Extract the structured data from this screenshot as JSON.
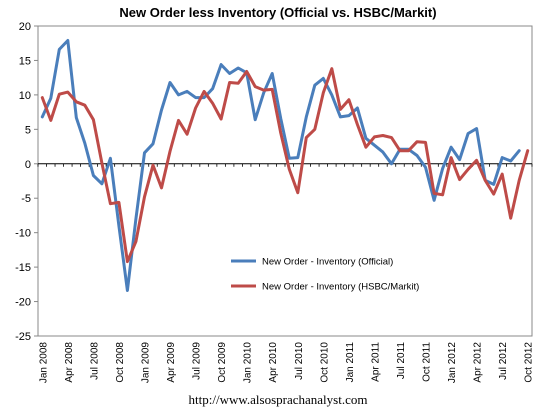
{
  "chart_data": {
    "type": "line",
    "title": "New Order less Inventory (Official vs. HSBC/Markit)",
    "xlabel": "",
    "ylabel": "",
    "ylim": [
      -25,
      20
    ],
    "yticks": [
      -25,
      -20,
      -15,
      -10,
      -5,
      0,
      5,
      10,
      15,
      20
    ],
    "x": [
      "Jan 2008",
      "Feb 2008",
      "Mar 2008",
      "Apr 2008",
      "May 2008",
      "Jun 2008",
      "Jul 2008",
      "Aug 2008",
      "Sep 2008",
      "Oct 2008",
      "Nov 2008",
      "Dec 2008",
      "Jan 2009",
      "Feb 2009",
      "Mar 2009",
      "Apr 2009",
      "May 2009",
      "Jun 2009",
      "Jul 2009",
      "Aug 2009",
      "Sep 2009",
      "Oct 2009",
      "Nov 2009",
      "Dec 2009",
      "Jan 2010",
      "Feb 2010",
      "Mar 2010",
      "Apr 2010",
      "May 2010",
      "Jun 2010",
      "Jul 2010",
      "Aug 2010",
      "Sep 2010",
      "Oct 2010",
      "Nov 2010",
      "Dec 2010",
      "Jan 2011",
      "Feb 2011",
      "Mar 2011",
      "Apr 2011",
      "May 2011",
      "Jun 2011",
      "Jul 2011",
      "Aug 2011",
      "Sep 2011",
      "Oct 2011",
      "Nov 2011",
      "Dec 2011",
      "Jan 2012",
      "Feb 2012",
      "Mar 2012",
      "Apr 2012",
      "May 2012",
      "Jun 2012",
      "Jul 2012",
      "Aug 2012",
      "Sep 2012",
      "Oct 2012"
    ],
    "xtick_labels": [
      "Jan 2008",
      "Apr 2008",
      "Jul 2008",
      "Oct 2008",
      "Jan 2009",
      "Apr 2009",
      "Jul 2009",
      "Oct 2009",
      "Jan 2010",
      "Apr 2010",
      "Jul 2010",
      "Oct 2010",
      "Jan 2011",
      "Apr 2011",
      "Jul 2011",
      "Oct 2011",
      "Jan 2012",
      "Apr 2012",
      "Jul 2012",
      "Oct 2012"
    ],
    "series": [
      {
        "name": "New Order - Inventory (Official)",
        "color": "#4A7EBB",
        "values": [
          6.8,
          9.5,
          16.6,
          17.9,
          6.7,
          3.0,
          -1.7,
          -2.9,
          0.8,
          -9.0,
          -18.4,
          -8.0,
          1.6,
          2.9,
          7.8,
          11.8,
          10.0,
          10.5,
          9.6,
          9.6,
          10.9,
          14.4,
          13.1,
          13.9,
          13.2,
          6.4,
          10.3,
          13.1,
          6.6,
          0.8,
          0.9,
          6.8,
          11.4,
          12.4,
          10.0,
          6.8,
          7.0,
          8.1,
          3.7,
          2.7,
          1.7,
          0.0,
          2.1,
          2.1,
          1.2,
          -0.5,
          -5.3,
          -0.7,
          2.4,
          0.6,
          4.4,
          5.1,
          -2.4,
          -3.0,
          0.9,
          0.4,
          1.9,
          null
        ],
        "stroke_width": 3
      },
      {
        "name": "New Order - Inventory (HSBC/Markit)",
        "color": "#BE4B48",
        "values": [
          9.6,
          6.3,
          10.1,
          10.4,
          9.0,
          8.5,
          6.4,
          0.1,
          -5.8,
          -5.6,
          -14.2,
          -11.3,
          -4.8,
          -0.2,
          -3.5,
          1.8,
          6.3,
          4.3,
          8.1,
          10.5,
          8.8,
          6.5,
          11.8,
          11.7,
          13.4,
          11.2,
          10.7,
          10.8,
          4.5,
          -0.8,
          -4.2,
          3.8,
          5.0,
          10.3,
          13.8,
          7.9,
          9.3,
          5.7,
          2.4,
          3.9,
          4.1,
          3.8,
          1.9,
          1.9,
          3.2,
          3.1,
          -4.3,
          -4.5,
          0.9,
          -2.3,
          -0.8,
          0.5,
          -2.4,
          -4.4,
          -1.5,
          -7.9,
          -2.4,
          1.9
        ],
        "stroke_width": 3
      }
    ],
    "legend": {
      "placement": "center"
    },
    "zero_line": true,
    "grid": false
  },
  "footer": {
    "url": "http://www.alsosprachanalyst.com"
  }
}
